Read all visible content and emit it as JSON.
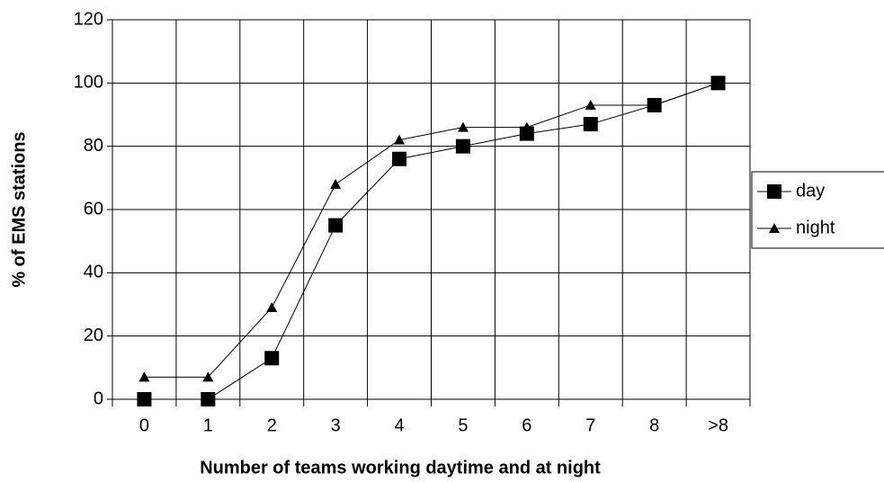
{
  "chart_data": {
    "type": "line",
    "x_label": "Number of teams working daytime and at night",
    "y_label": "% of EMS stations",
    "categories": [
      "0",
      "1",
      "2",
      "3",
      "4",
      "5",
      "6",
      "7",
      "8",
      ">8"
    ],
    "series": [
      {
        "name": "day",
        "color": "#000000",
        "marker": "square",
        "values": [
          0,
          0,
          13,
          55,
          76,
          80,
          84,
          87,
          93,
          100
        ]
      },
      {
        "name": "night",
        "color": "#000000",
        "marker": "triangle",
        "values": [
          7,
          7,
          29,
          68,
          82,
          86,
          86,
          93,
          93,
          100
        ]
      }
    ],
    "ylim": [
      0,
      120
    ],
    "yticks": [
      0,
      20,
      40,
      60,
      80,
      100,
      120
    ],
    "grid": true,
    "legend": "right"
  }
}
